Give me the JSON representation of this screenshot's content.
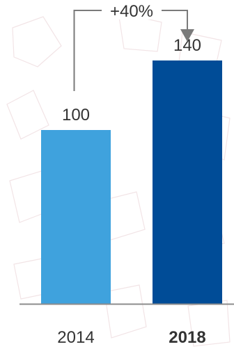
{
  "chart_data": {
    "type": "bar",
    "categories": [
      "2014",
      "2018"
    ],
    "values": [
      100,
      140
    ],
    "data_labels": [
      "100",
      "140"
    ],
    "emphasized_category": "2018",
    "ylim": [
      0,
      160
    ],
    "title": "",
    "xlabel": "",
    "ylabel": "",
    "grid": false,
    "legend": "none",
    "annotation": {
      "text": "+40%",
      "from": "2014",
      "to": "2018"
    },
    "colors": {
      "bars": [
        "#3fa2dd",
        "#004c97"
      ],
      "axis": "#8c8c8c",
      "annotation": "#7a7a7a",
      "text": "#333333",
      "background_pattern": "#f2e4e6"
    }
  }
}
